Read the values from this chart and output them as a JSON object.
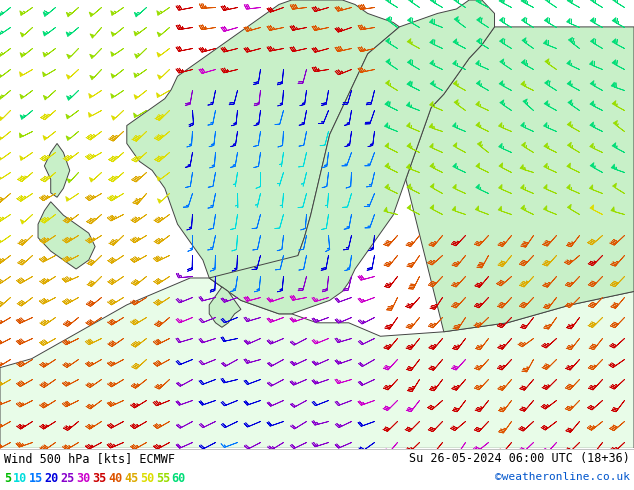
{
  "title_left": "Wind 500 hPa [kts] ECMWF",
  "title_right": "Su 26-05-2024 06:00 UTC (18+36)",
  "credit": "©weatheronline.co.uk",
  "legend_values": [
    5,
    10,
    15,
    20,
    25,
    30,
    35,
    40,
    45,
    50,
    55,
    60
  ],
  "legend_colors": [
    "#00bb00",
    "#00dddd",
    "#0077ff",
    "#0000dd",
    "#8800cc",
    "#cc00cc",
    "#cc0000",
    "#dd5500",
    "#ddaa00",
    "#dddd00",
    "#99dd00",
    "#00dd77"
  ],
  "ocean_color": "#d8d8d8",
  "land_color": "#c8f0c8",
  "land_color2": "#e8fce8",
  "coast_color": "#444444",
  "coast_lw": 0.7,
  "bg_color": "#ffffff",
  "figsize": [
    6.34,
    4.9
  ],
  "dpi": 100,
  "nx": 28,
  "ny": 22
}
